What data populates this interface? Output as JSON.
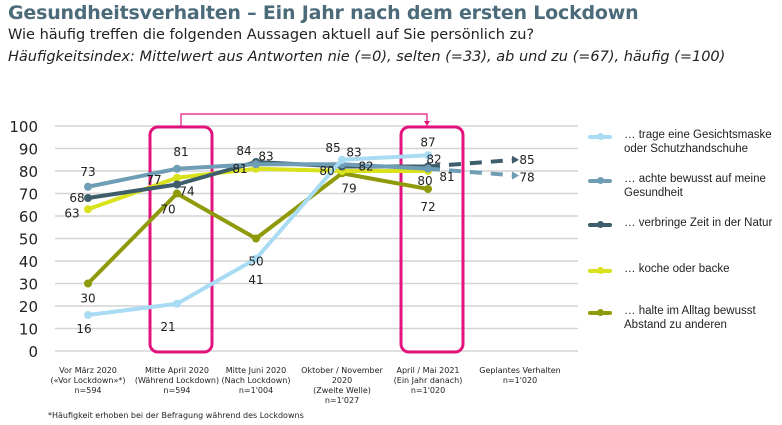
{
  "header": {
    "title": "Gesundheitsverhalten – Ein Jahr nach dem ersten Lockdown",
    "subtitle": "Wie häufig treffen die folgenden Aussagen aktuell auf Sie persönlich zu?",
    "note": "Häufigkeitsindex: Mittelwert aus Antworten nie (=0), selten (=33), ab und zu (=67), häufig (=100)"
  },
  "footnote": "*Häufigkeit erhoben bei der Befragung während des Lockdowns",
  "chart_data": {
    "type": "line",
    "categories": [
      [
        "Vor März 2020",
        "(«Vor Lockdown»*)",
        "n=594"
      ],
      [
        "Mitte April 2020",
        "(Während Lockdown)",
        "n=594"
      ],
      [
        "Mitte Juni 2020",
        "(Nach Lockdown)",
        "n=1'004"
      ],
      [
        "Oktober / November",
        "2020",
        "(Zweite Welle)",
        "n=1'027"
      ],
      [
        "April / Mai 2021",
        "(Ein Jahr danach)",
        "n=1'020"
      ],
      [
        "Geplantes Verhalten",
        "n=1'020"
      ]
    ],
    "ylim": [
      0,
      100
    ],
    "yticks": [
      0,
      10,
      20,
      30,
      40,
      50,
      60,
      70,
      80,
      90,
      100
    ],
    "grid": true,
    "legend_position": "right",
    "highlight_color": "#e2137d",
    "highlighted_categories": [
      "Mitte April 2020",
      "April / Mai 2021"
    ],
    "series": [
      {
        "name": "… trage eine Gesichtsmaske oder Schutzhandschuhe",
        "color": "#a9dcf3",
        "values": [
          16,
          21,
          41,
          85,
          87,
          null
        ]
      },
      {
        "name": "… achte bewusst auf meine Gesundheit",
        "color": "#6f9db5",
        "values": [
          73,
          81,
          83,
          83,
          81,
          78
        ]
      },
      {
        "name": "… verbringe Zeit in der Natur",
        "color": "#3f5e6c",
        "values": [
          68,
          74,
          84,
          82,
          82,
          85
        ]
      },
      {
        "name": "… koche oder backe",
        "color": "#d9e21a",
        "values": [
          63,
          77,
          81,
          80,
          80,
          null
        ]
      },
      {
        "name": "… halte im Alltag bewusst Abstand zu anderen",
        "color": "#8e9a0a",
        "values": [
          30,
          70,
          50,
          79,
          72,
          null
        ]
      }
    ],
    "planned_line_style": "dashed"
  }
}
